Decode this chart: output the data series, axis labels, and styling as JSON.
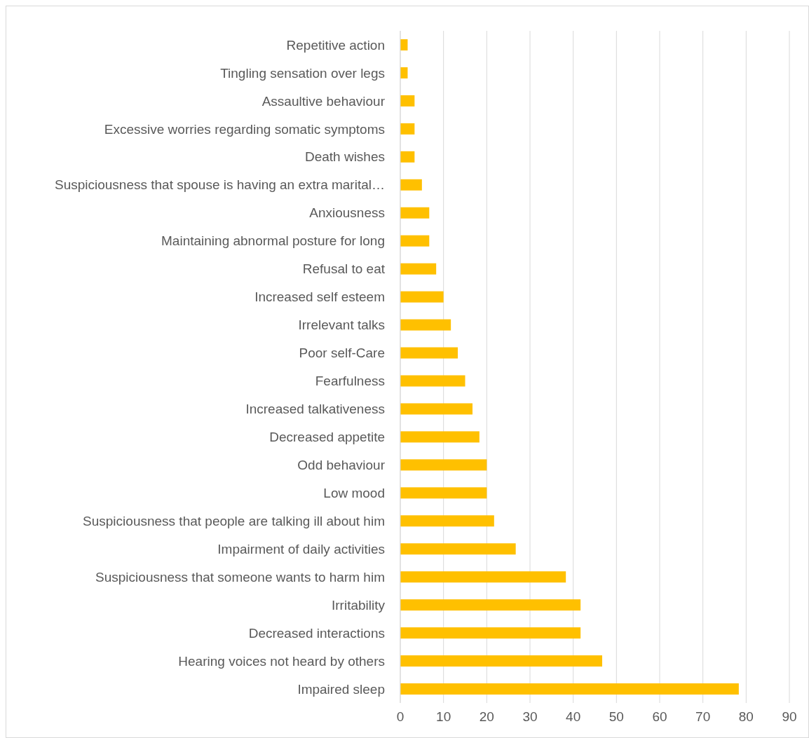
{
  "chart_data": {
    "type": "bar",
    "orientation": "horizontal",
    "categories": [
      "Repetitive action",
      "Tingling sensation over legs",
      "Assaultive behaviour",
      "Excessive worries regarding somatic symptoms",
      "Death wishes",
      "Suspiciousness that spouse is having an extra marital…",
      "Anxiousness",
      "Maintaining abnormal posture for long",
      "Refusal to eat",
      "Increased self esteem",
      "Irrelevant talks",
      "Poor self-Care",
      "Fearfulness",
      "Increased talkativeness",
      "Decreased appetite",
      "Odd behaviour",
      "Low mood",
      "Suspiciousness that people are talking ill about him",
      "Impairment of daily activities",
      "Suspiciousness that someone wants to harm him",
      "Irritability",
      "Decreased interactions",
      "Hearing voices not heard by others",
      "Impaired sleep"
    ],
    "values": [
      1.7,
      1.7,
      3.3,
      3.3,
      3.3,
      5.0,
      6.7,
      6.7,
      8.3,
      10.0,
      11.7,
      13.3,
      15.0,
      16.7,
      18.3,
      20.0,
      20.0,
      21.7,
      26.7,
      38.3,
      41.7,
      41.7,
      46.7,
      78.3
    ],
    "color": "#ffc000",
    "xlim": [
      0,
      90
    ],
    "xticks": [
      0,
      10,
      20,
      30,
      40,
      50,
      60,
      70,
      80,
      90
    ],
    "grid": "x"
  }
}
